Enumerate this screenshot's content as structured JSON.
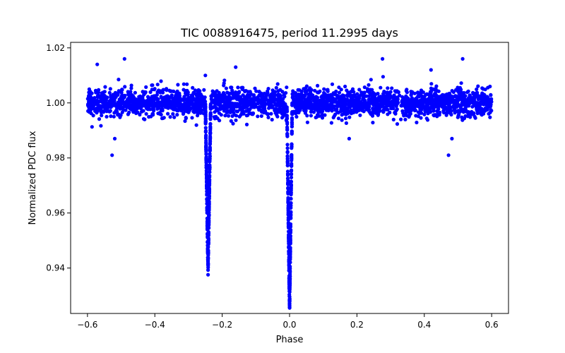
{
  "chart_data": {
    "type": "scatter",
    "title": "TIC 0088916475, period 11.2995 days",
    "xlabel": "Phase",
    "ylabel": "Normalized PDC flux",
    "xlim": [
      -0.65,
      0.65
    ],
    "ylim": [
      0.9235,
      1.022
    ],
    "x_ticks": [
      -0.6,
      -0.4,
      -0.2,
      0.0,
      0.2,
      0.4,
      0.6
    ],
    "x_tick_labels": [
      "−0.6",
      "−0.4",
      "−0.2",
      "0.0",
      "0.2",
      "0.4",
      "0.6"
    ],
    "y_ticks": [
      0.94,
      0.96,
      0.98,
      1.0,
      1.02
    ],
    "y_tick_labels": [
      "0.94",
      "0.96",
      "0.98",
      "1.00",
      "1.02"
    ],
    "grid": false,
    "series": [
      {
        "name": "PDC flux",
        "color": "#0000ff",
        "phase_range": [
          -0.6,
          0.6
        ],
        "baseline_flux": 1.0,
        "scatter_sigma": 0.0025,
        "eclipses": [
          {
            "name": "secondary",
            "center": -0.242,
            "min_flux": 0.94,
            "half_width": 0.008
          },
          {
            "name": "primary",
            "center": 0.0,
            "min_flux": 0.926,
            "half_width": 0.008
          }
        ],
        "outliers": [
          {
            "x": -0.527,
            "y": 0.981
          },
          {
            "x": 0.472,
            "y": 0.981
          },
          {
            "x": -0.49,
            "y": 1.016
          },
          {
            "x": 0.276,
            "y": 1.016
          },
          {
            "x": 0.514,
            "y": 1.016
          },
          {
            "x": -0.571,
            "y": 1.014
          },
          {
            "x": -0.519,
            "y": 0.987
          },
          {
            "x": 0.482,
            "y": 0.987
          },
          {
            "x": 0.177,
            "y": 0.987
          },
          {
            "x": -0.25,
            "y": 1.01
          },
          {
            "x": -0.16,
            "y": 1.013
          },
          {
            "x": 0.42,
            "y": 1.012
          }
        ]
      }
    ]
  }
}
